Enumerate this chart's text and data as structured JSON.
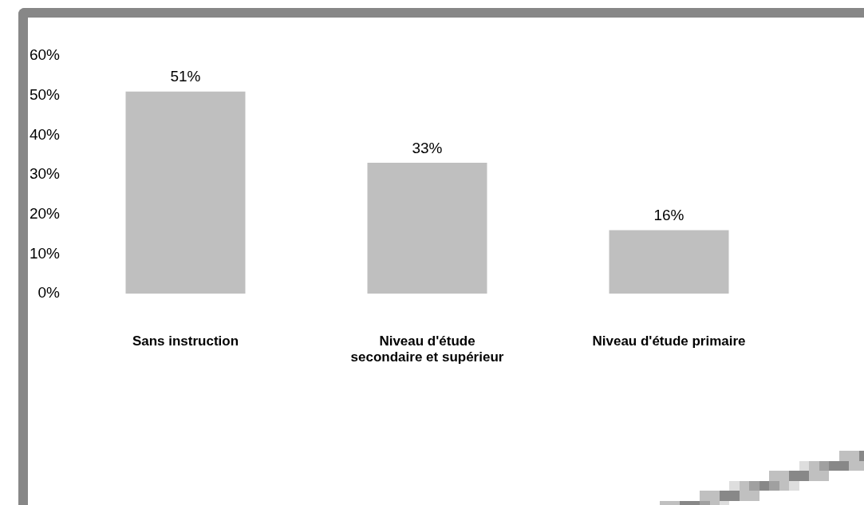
{
  "chart_data": {
    "type": "bar",
    "categories": [
      "Sans instruction",
      "Niveau d'étude secondaire et supérieur",
      "Niveau d'étude primaire"
    ],
    "values": [
      51,
      33,
      16
    ],
    "value_labels": [
      "51%",
      "33%",
      "16%"
    ],
    "color": "#bfbfbf",
    "ylim": [
      0,
      60
    ],
    "yticks": [
      {
        "value": 0,
        "label": "0%"
      },
      {
        "value": 10,
        "label": "10%"
      },
      {
        "value": 20,
        "label": "20%"
      },
      {
        "value": 30,
        "label": "30%"
      },
      {
        "value": 40,
        "label": "40%"
      },
      {
        "value": 50,
        "label": "50%"
      },
      {
        "value": 60,
        "label": "60%"
      }
    ]
  }
}
